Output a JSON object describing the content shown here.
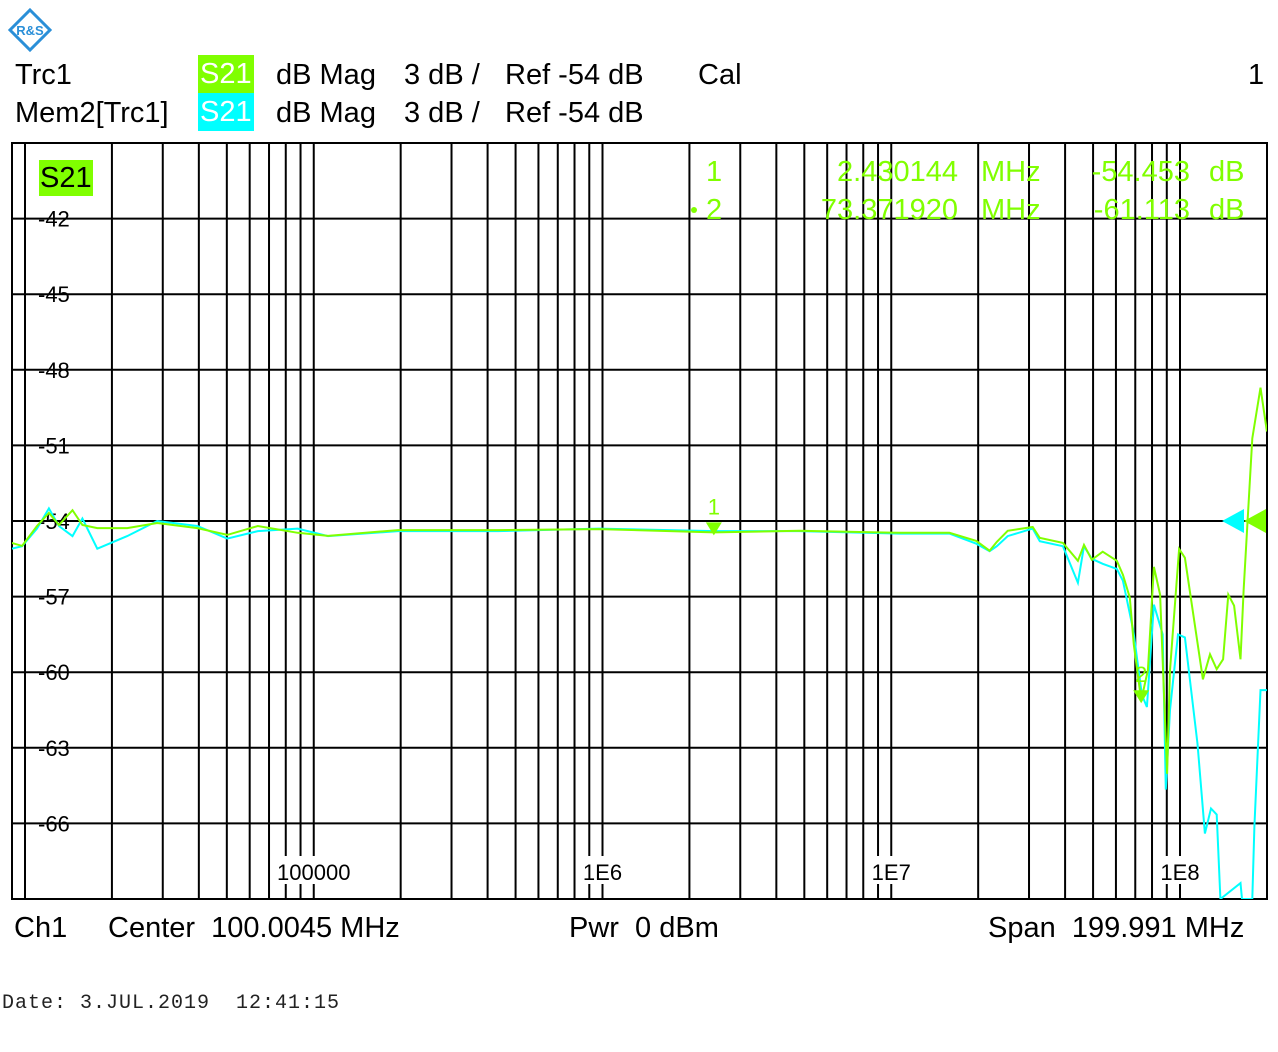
{
  "logo": "R&S",
  "header": {
    "rows": [
      {
        "trace": "Trc1",
        "param": "S21",
        "format": "dB Mag",
        "scale": "3 dB /",
        "ref": "Ref -54 dB",
        "cal": "Cal",
        "channel": "1",
        "color": "#80ff00"
      },
      {
        "trace": "Mem2[Trc1]",
        "param": "S21",
        "format": "dB Mag",
        "scale": "3 dB /",
        "ref": "Ref -54 dB",
        "color": "#00ffff"
      }
    ]
  },
  "footer": {
    "channel": "Ch1",
    "center": "Center  100.0045 MHz",
    "power": "Pwr  0 dBm",
    "span": "Span  199.991 MHz",
    "date": "Date: 3.JUL.2019  12:41:15"
  },
  "chart_data": {
    "type": "line",
    "trace_label": "S21",
    "x_scale": "log",
    "xlim": [
      9000,
      200000000
    ],
    "ylim": [
      -69,
      -39
    ],
    "y_ticks": [
      -42,
      -45,
      -48,
      -51,
      -54,
      -57,
      -60,
      -63,
      -66
    ],
    "x_tick_labels": [
      {
        "value": 100000,
        "label": "100000"
      },
      {
        "value": 1000000,
        "label": "1E6"
      },
      {
        "value": 10000000,
        "label": "1E7"
      },
      {
        "value": 100000000,
        "label": "1E8"
      }
    ],
    "ref_level": -54,
    "grid": true,
    "markers": [
      {
        "id": "1",
        "freq": 2430144,
        "freq_text": "2.430144",
        "unit": "MHz",
        "value": -54.453,
        "value_text": "-54.453",
        "value_unit": "dB",
        "active": false
      },
      {
        "id": "2",
        "freq": 73371920,
        "freq_text": "73.371920",
        "unit": "MHz",
        "value": -61.113,
        "value_text": "-61.113",
        "value_unit": "dB",
        "active": true
      }
    ],
    "series": [
      {
        "name": "Trc1",
        "color": "#80ff00",
        "x": [
          9000,
          9770,
          11000,
          12100,
          13100,
          14600,
          15800,
          17800,
          22600,
          28700,
          39500,
          50200,
          64000,
          88000,
          112000,
          196000,
          436000,
          969000,
          2430144,
          4800000,
          10700000,
          15900000,
          19700000,
          21900000,
          23200000,
          25300000,
          30900000,
          32700000,
          39300000,
          44300000,
          46500000,
          49500000,
          54000000,
          60400000,
          63400000,
          67000000,
          69200000,
          73371920,
          77400000,
          81200000,
          85300000,
          90200000,
          92300000,
          99300000,
          104000000,
          120000000,
          127000000,
          134000000,
          141000000,
          147000000,
          154000000,
          162000000,
          166000000,
          178000000,
          190000000,
          200000000
        ],
        "y": [
          -54.87,
          -54.99,
          -54.2,
          -53.68,
          -54.16,
          -53.57,
          -54.16,
          -54.28,
          -54.28,
          -54.08,
          -54.28,
          -54.55,
          -54.2,
          -54.47,
          -54.59,
          -54.36,
          -54.36,
          -54.32,
          -54.453,
          -54.39,
          -54.47,
          -54.47,
          -54.79,
          -55.18,
          -54.83,
          -54.39,
          -54.24,
          -54.67,
          -54.87,
          -55.58,
          -54.95,
          -55.54,
          -55.22,
          -55.58,
          -56.13,
          -57.04,
          -58.9,
          -61.113,
          -59.92,
          -55.82,
          -56.92,
          -64.03,
          -59.92,
          -55.11,
          -55.46,
          -60.28,
          -59.29,
          -59.88,
          -59.49,
          -56.92,
          -57.36,
          -59.49,
          -56.76,
          -50.72,
          -48.71,
          -50.45
        ]
      },
      {
        "name": "Mem2[Trc1]",
        "color": "#00ffff",
        "x": [
          9000,
          9770,
          11000,
          12100,
          13100,
          14600,
          15800,
          17800,
          22600,
          28700,
          39500,
          50200,
          64000,
          88000,
          112000,
          196000,
          436000,
          969000,
          2430144,
          4800000,
          10700000,
          15900000,
          19700000,
          21900000,
          23200000,
          25300000,
          30900000,
          32700000,
          39300000,
          44300000,
          46500000,
          49500000,
          54000000,
          60400000,
          63400000,
          68900000,
          73800000,
          76800000,
          81200000,
          87100000,
          89300000,
          92300000,
          98400000,
          104000000,
          115000000,
          122000000,
          128000000,
          134000000,
          138000000,
          162000000,
          164000000,
          178000000,
          181000000,
          190000000,
          200000000
        ],
        "y": [
          -55.1,
          -55.0,
          -54.3,
          -53.5,
          -54.2,
          -54.6,
          -53.9,
          -55.1,
          -54.6,
          -54.0,
          -54.2,
          -54.7,
          -54.4,
          -54.3,
          -54.6,
          -54.4,
          -54.4,
          -54.3,
          -54.4,
          -54.4,
          -54.5,
          -54.5,
          -54.9,
          -55.2,
          -55.0,
          -54.6,
          -54.3,
          -54.8,
          -55.0,
          -56.45,
          -55.0,
          -55.5,
          -55.7,
          -55.9,
          -56.37,
          -58.34,
          -60.9,
          -61.38,
          -57.32,
          -58.5,
          -64.66,
          -61.5,
          -58.5,
          -58.62,
          -62.84,
          -66.4,
          -65.41,
          -65.65,
          -69,
          -68.37,
          -69,
          -69,
          -66.12,
          -60.71,
          -60.71
        ]
      }
    ]
  }
}
